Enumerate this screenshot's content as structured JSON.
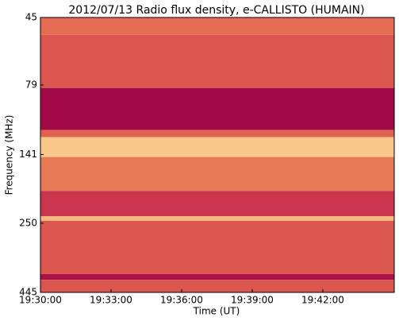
{
  "chart_data": {
    "type": "spectrogram",
    "title": "2012/07/13  Radio flux density, e-CALLISTO (HUMAIN)",
    "x_label": "Time (UT)",
    "y_label": "Frequency (MHz)",
    "xlim": [
      "19:30:00",
      "19:45:02"
    ],
    "xticks": [
      "19:30:00",
      "19:33:00",
      "19:36:00",
      "19:39:00",
      "19:42:00"
    ],
    "ylim": [
      45,
      445
    ],
    "yticks": [
      45,
      79,
      141,
      250,
      445
    ],
    "y_log": true,
    "y_inverted": true,
    "band_edges": [
      45,
      52,
      81,
      115,
      122,
      144,
      191,
      236,
      245,
      382,
      401,
      445
    ],
    "intensity": [
      0.55,
      0.45,
      0.05,
      0.5,
      0.9,
      0.6,
      0.3,
      0.85,
      0.45,
      0.1,
      0.45
    ],
    "colormap": [
      "#990045",
      "#c42a4c",
      "#e0614f",
      "#f39c62",
      "#fde3a0"
    ]
  }
}
